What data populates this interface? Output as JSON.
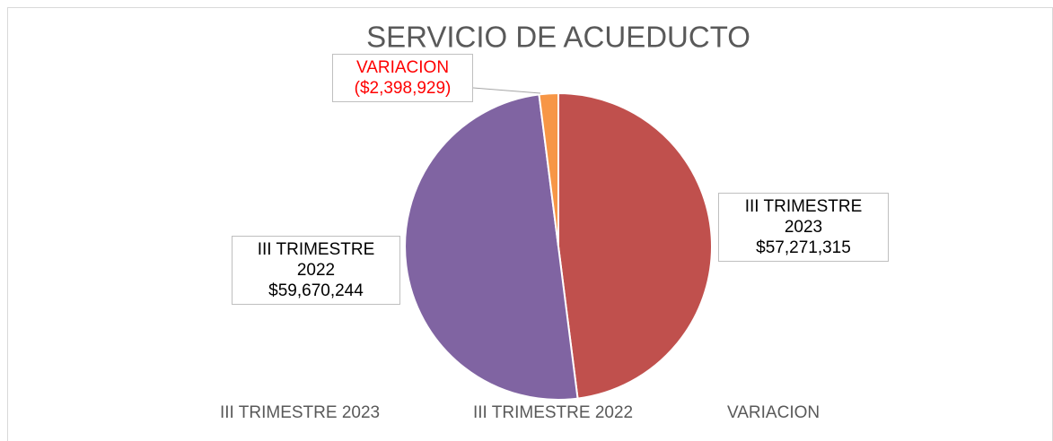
{
  "chart_data": {
    "type": "pie",
    "title": "SERVICIO DE ACUEDUCTO",
    "categories": [
      "III TRIMESTRE 2023",
      "III TRIMESTRE 2022",
      "VARIACION"
    ],
    "values": [
      57271315,
      59670244,
      -2398929
    ],
    "value_labels": [
      "$57,271,315",
      "$59,670,244",
      "($2,398,929)"
    ],
    "colors": [
      "#c0504d",
      "#8064a2",
      "#f79646"
    ],
    "legend": "bottom"
  }
}
